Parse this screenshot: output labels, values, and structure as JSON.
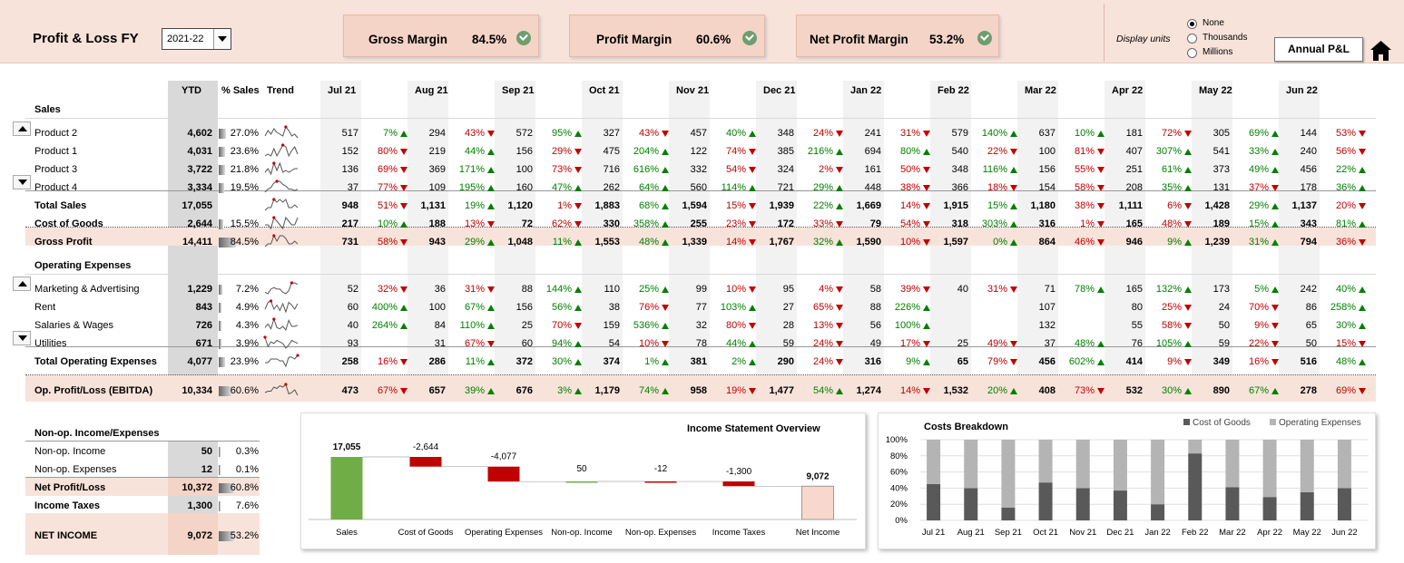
{
  "header": {
    "title": "Profit & Loss FY",
    "year": "2021-22",
    "display_units_label": "Display units",
    "units_options": [
      "None",
      "Thousands",
      "Millions"
    ],
    "units_selected": 0,
    "annual_button": "Annual P&L"
  },
  "kpis": [
    {
      "label": "Gross Margin",
      "value": "84.5%"
    },
    {
      "label": "Profit Margin",
      "value": "60.6%"
    },
    {
      "label": "Net Profit Margin",
      "value": "53.2%"
    }
  ],
  "table": {
    "col_headers": {
      "ytd": "YTD",
      "pct": "% Sales",
      "trend": "Trend"
    },
    "months": [
      "Jul 21",
      "Aug 21",
      "Sep 21",
      "Oct 21",
      "Nov 21",
      "Dec 21",
      "Jan 22",
      "Feb 22",
      "Mar 22",
      "Apr 22",
      "May 22",
      "Jun 22"
    ],
    "sections": {
      "sales": "Sales",
      "opex": "Operating Expenses"
    },
    "rows": [
      {
        "label": "Product 2",
        "ytd": "4,602",
        "pct": "27.0%",
        "pctv": 27.0,
        "trend": [
          3,
          6,
          4,
          7,
          5,
          4,
          3,
          8,
          6,
          3,
          4,
          2
        ],
        "vals": [
          "517",
          "294",
          "572",
          "327",
          "457",
          "348",
          "241",
          "579",
          "637",
          "181",
          "305",
          "144"
        ],
        "chg": [
          "7%",
          "43%",
          "95%",
          "43%",
          "40%",
          "24%",
          "31%",
          "140%",
          "10%",
          "72%",
          "69%",
          "53%"
        ],
        "dir": [
          "up",
          "down",
          "up",
          "down",
          "up",
          "down",
          "down",
          "up",
          "up",
          "down",
          "up",
          "down"
        ]
      },
      {
        "label": "Product 1",
        "ytd": "4,031",
        "pct": "23.6%",
        "pctv": 23.6,
        "trend": [
          2,
          3,
          2,
          6,
          2,
          5,
          8,
          7,
          2,
          5,
          7,
          3
        ],
        "vals": [
          "152",
          "219",
          "156",
          "475",
          "122",
          "385",
          "694",
          "540",
          "100",
          "407",
          "541",
          "240"
        ],
        "chg": [
          "80%",
          "44%",
          "29%",
          "204%",
          "74%",
          "216%",
          "80%",
          "22%",
          "81%",
          "307%",
          "33%",
          "56%"
        ],
        "dir": [
          "down",
          "up",
          "down",
          "up",
          "down",
          "up",
          "up",
          "down",
          "down",
          "up",
          "up",
          "down"
        ]
      },
      {
        "label": "Product 3",
        "ytd": "3,722",
        "pct": "21.8%",
        "pctv": 21.8,
        "trend": [
          2,
          4,
          1,
          7,
          3,
          7,
          2,
          3,
          2,
          3,
          4,
          4
        ],
        "vals": [
          "136",
          "369",
          "100",
          "716",
          "332",
          "324",
          "161",
          "348",
          "156",
          "251",
          "373",
          "456"
        ],
        "chg": [
          "69%",
          "171%",
          "73%",
          "616%",
          "54%",
          "2%",
          "50%",
          "116%",
          "55%",
          "61%",
          "49%",
          "22%"
        ],
        "dir": [
          "down",
          "up",
          "down",
          "up",
          "down",
          "down",
          "down",
          "up",
          "down",
          "up",
          "up",
          "up"
        ]
      },
      {
        "label": "Product 4",
        "ytd": "3,334",
        "pct": "19.5%",
        "pctv": 19.5,
        "trend": [
          1,
          3,
          4,
          7,
          8,
          8,
          6,
          5,
          3,
          3,
          2,
          3
        ],
        "vals": [
          "37",
          "109",
          "160",
          "262",
          "560",
          "721",
          "448",
          "366",
          "154",
          "208",
          "131",
          "178"
        ],
        "chg": [
          "77%",
          "195%",
          "47%",
          "64%",
          "114%",
          "29%",
          "38%",
          "18%",
          "58%",
          "35%",
          "37%",
          "36%"
        ],
        "dir": [
          "down",
          "up",
          "up",
          "up",
          "up",
          "up",
          "down",
          "down",
          "down",
          "up",
          "down",
          "up"
        ]
      },
      {
        "label": "Total Sales",
        "bold": true,
        "ytd": "17,055",
        "pct": "",
        "trend": [
          3,
          4,
          4,
          7,
          6,
          7,
          6,
          7,
          4,
          4,
          5,
          4
        ],
        "vals": [
          "948",
          "1,131",
          "1,120",
          "1,883",
          "1,594",
          "1,939",
          "1,669",
          "1,915",
          "1,180",
          "1,111",
          "1,428",
          "1,137"
        ],
        "chg": [
          "51%",
          "19%",
          "1%",
          "68%",
          "15%",
          "22%",
          "14%",
          "15%",
          "38%",
          "6%",
          "29%",
          "20%"
        ],
        "dir": [
          "down",
          "up",
          "down",
          "up",
          "down",
          "up",
          "down",
          "up",
          "down",
          "down",
          "up",
          "down"
        ]
      },
      {
        "label": "Cost of Goods",
        "bold": true,
        "ytd": "2,644",
        "pct": "15.5%",
        "pctv": 15.5,
        "trend": [
          2,
          2,
          1,
          4,
          3,
          2,
          1,
          4,
          3,
          2,
          2,
          4
        ],
        "vals": [
          "217",
          "188",
          "72",
          "330",
          "255",
          "172",
          "79",
          "318",
          "316",
          "165",
          "189",
          "343"
        ],
        "chg": [
          "10%",
          "13%",
          "62%",
          "358%",
          "23%",
          "33%",
          "54%",
          "303%",
          "1%",
          "48%",
          "15%",
          "81%"
        ],
        "dir": [
          "up",
          "down",
          "down",
          "up",
          "down",
          "down",
          "down",
          "up",
          "down",
          "down",
          "up",
          "up"
        ]
      },
      {
        "label": "Gross Profit",
        "bold": true,
        "band": true,
        "ytd": "14,411",
        "pct": "84.5%",
        "pctv": 84.5,
        "trend": [
          3,
          4,
          4,
          7,
          5,
          7,
          7,
          6,
          4,
          4,
          5,
          4
        ],
        "vals": [
          "731",
          "943",
          "1,048",
          "1,553",
          "1,339",
          "1,767",
          "1,590",
          "1,597",
          "864",
          "946",
          "1,239",
          "794"
        ],
        "chg": [
          "58%",
          "29%",
          "11%",
          "48%",
          "14%",
          "32%",
          "10%",
          "0%",
          "46%",
          "9%",
          "31%",
          "36%"
        ],
        "dir": [
          "down",
          "up",
          "up",
          "up",
          "down",
          "up",
          "down",
          "up",
          "down",
          "up",
          "up",
          "down"
        ]
      },
      {
        "label": "Marketing & Advertising",
        "ytd": "1,229",
        "pct": "7.2%",
        "pctv": 7.2,
        "trend": [
          3,
          2,
          5,
          6,
          5,
          5,
          3,
          2,
          4,
          9,
          9,
          8
        ],
        "vals": [
          "52",
          "36",
          "88",
          "110",
          "99",
          "95",
          "58",
          "40",
          "71",
          "165",
          "173",
          "242"
        ],
        "chg": [
          "32%",
          "31%",
          "144%",
          "25%",
          "10%",
          "4%",
          "39%",
          "31%",
          "78%",
          "132%",
          "5%",
          "40%"
        ],
        "dir": [
          "down",
          "down",
          "up",
          "up",
          "down",
          "down",
          "down",
          "down",
          "up",
          "up",
          "up",
          "up"
        ]
      },
      {
        "label": "Rent",
        "ytd": "843",
        "pct": "4.9%",
        "pctv": 4.9,
        "trend": [
          2,
          7,
          8,
          2,
          5,
          1,
          6,
          0,
          7,
          5,
          2,
          6
        ],
        "vals": [
          "60",
          "100",
          "156",
          "38",
          "77",
          "27",
          "88",
          "",
          "107",
          "80",
          "24",
          "86"
        ],
        "chg": [
          "400%",
          "67%",
          "56%",
          "76%",
          "103%",
          "65%",
          "226%",
          "",
          "",
          "25%",
          "70%",
          "258%"
        ],
        "dir": [
          "up",
          "up",
          "up",
          "down",
          "up",
          "down",
          "up",
          "",
          "",
          "down",
          "down",
          "up"
        ]
      },
      {
        "label": "Salaries & Wages",
        "ytd": "726",
        "pct": "4.3%",
        "pctv": 4.3,
        "trend": [
          2,
          5,
          1,
          9,
          2,
          1,
          3,
          0,
          8,
          3,
          3,
          4
        ],
        "vals": [
          "40",
          "84",
          "25",
          "159",
          "32",
          "28",
          "56",
          "",
          "132",
          "55",
          "50",
          "65"
        ],
        "chg": [
          "264%",
          "110%",
          "70%",
          "536%",
          "80%",
          "13%",
          "100%",
          "",
          "",
          "58%",
          "9%",
          "30%"
        ],
        "dir": [
          "up",
          "up",
          "down",
          "up",
          "down",
          "down",
          "up",
          "",
          "",
          "down",
          "down",
          "up"
        ]
      },
      {
        "label": "Utilities",
        "ytd": "671",
        "pct": "3.9%",
        "pctv": 3.9,
        "trend": [
          9,
          3,
          6,
          5,
          7,
          6,
          5,
          2,
          4,
          7,
          6,
          5
        ],
        "vals": [
          "93",
          "31",
          "60",
          "54",
          "78",
          "59",
          "49",
          "25",
          "37",
          "76",
          "59",
          "50"
        ],
        "chg": [
          "",
          "67%",
          "94%",
          "10%",
          "44%",
          "24%",
          "17%",
          "49%",
          "48%",
          "105%",
          "22%",
          "15%"
        ],
        "dir": [
          "",
          "down",
          "up",
          "down",
          "up",
          "down",
          "down",
          "down",
          "up",
          "up",
          "down",
          "down"
        ]
      },
      {
        "label": "Total Operating Expenses",
        "bold": true,
        "ytd": "4,077",
        "pct": "23.9%",
        "pctv": 23.9,
        "trend": [
          4,
          4,
          6,
          6,
          6,
          5,
          5,
          2,
          7,
          7,
          6,
          8
        ],
        "vals": [
          "258",
          "286",
          "372",
          "374",
          "381",
          "290",
          "316",
          "65",
          "456",
          "414",
          "349",
          "516"
        ],
        "chg": [
          "16%",
          "11%",
          "30%",
          "1%",
          "2%",
          "24%",
          "9%",
          "79%",
          "602%",
          "9%",
          "16%",
          "48%"
        ],
        "dir": [
          "down",
          "up",
          "up",
          "up",
          "up",
          "down",
          "up",
          "down",
          "up",
          "down",
          "down",
          "up"
        ]
      },
      {
        "label": "Op. Profit/Loss (EBITDA)",
        "bold": true,
        "band": true,
        "ytd": "10,334",
        "pct": "60.6%",
        "pctv": 60.6,
        "trend": [
          3,
          4,
          4,
          7,
          6,
          8,
          7,
          9,
          2,
          3,
          5,
          1
        ],
        "vals": [
          "473",
          "657",
          "676",
          "1,179",
          "958",
          "1,477",
          "1,274",
          "1,532",
          "408",
          "532",
          "890",
          "278"
        ],
        "chg": [
          "67%",
          "39%",
          "3%",
          "74%",
          "19%",
          "54%",
          "14%",
          "20%",
          "73%",
          "30%",
          "67%",
          "69%"
        ],
        "dir": [
          "down",
          "up",
          "up",
          "up",
          "down",
          "up",
          "down",
          "up",
          "down",
          "up",
          "up",
          "down"
        ]
      }
    ]
  },
  "nonop": {
    "title": "Non-op. Income/Expenses",
    "rows": [
      {
        "label": "Non-op. Income",
        "val": "50",
        "pct": "0.3%",
        "pctv": 0.3
      },
      {
        "label": "Non-op. Expenses",
        "val": "12",
        "pct": "0.1%",
        "pctv": 0.1
      },
      {
        "label": "Net Profit/Loss",
        "bold": true,
        "band": true,
        "val": "10,372",
        "pct": "60.8%",
        "pctv": 60.8
      },
      {
        "label": "Income Taxes",
        "bold": true,
        "val": "1,300",
        "pct": "7.6%",
        "pctv": 7.6
      },
      {
        "label": "NET INCOME",
        "bold": true,
        "band": true,
        "val": "9,072",
        "pct": "53.2%",
        "pctv": 53.2
      }
    ]
  },
  "chart_data": [
    {
      "type": "bar",
      "title": "Income Statement Overview",
      "categories": [
        "Sales",
        "Cost of Goods",
        "Operating Expenses",
        "Non-op. Income",
        "Non-op. Expenses",
        "Income Taxes",
        "Net Income"
      ],
      "values": [
        17055,
        -2644,
        -4077,
        50,
        -12,
        -1300,
        9072
      ],
      "labels": [
        "17,055",
        "-2,644",
        "-4,077",
        "50",
        "-12",
        "-1,300",
        "9,072"
      ],
      "colors": {
        "total": "#70ad47",
        "decrease": "#c00000",
        "increase": "#70ad47",
        "result": "#f8d7cc"
      }
    },
    {
      "type": "bar",
      "title": "Costs Breakdown",
      "categories": [
        "Jul 21",
        "Aug 21",
        "Sep 21",
        "Oct 21",
        "Nov 21",
        "Dec 21",
        "Jan 22",
        "Feb 22",
        "Mar 22",
        "Apr 22",
        "May 22",
        "Jun 22"
      ],
      "series": [
        {
          "name": "Cost of Goods",
          "values": [
            45,
            40,
            16,
            47,
            40,
            37,
            20,
            83,
            41,
            29,
            35,
            40
          ],
          "color": "#595959"
        },
        {
          "name": "Operating Expenses",
          "values": [
            55,
            60,
            84,
            53,
            60,
            63,
            80,
            17,
            59,
            71,
            65,
            60
          ],
          "color": "#b4b4b4"
        }
      ],
      "yticks": [
        "0%",
        "20%",
        "40%",
        "60%",
        "80%",
        "100%"
      ],
      "ylim": [
        0,
        100
      ]
    }
  ],
  "colors": {
    "green": "#008000",
    "red": "#c00000",
    "band": "#f8e3da",
    "grey": "#d9d9d9"
  }
}
